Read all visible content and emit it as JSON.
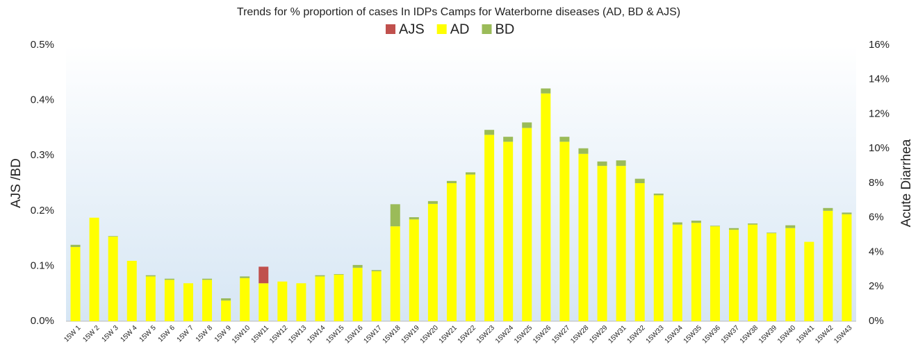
{
  "chart_data": {
    "type": "bar",
    "title": "Trends for % proportion of cases In IDPs Camps for Waterborne diseases (AD, BD & AJS)",
    "ylabel": "AJS /BD",
    "y2label": "Acute Diarrhea",
    "stacked": true,
    "legend": "top",
    "categories": [
      "15W 1",
      "15W 2",
      "15W 3",
      "15W 4",
      "15W 5",
      "15W 6",
      "15W 7",
      "15W 8",
      "15W 9",
      "15W10",
      "15W11",
      "15W12",
      "15W13",
      "15W14",
      "15W15",
      "15W16",
      "15W17",
      "15W18",
      "15W19",
      "15W20",
      "15W21",
      "15W22",
      "15W23",
      "15W24",
      "15W25",
      "15W26",
      "15W27",
      "15W28",
      "15W29",
      "15W31",
      "15W32",
      "15W33",
      "15W34",
      "15W35",
      "15W36",
      "15W37",
      "15W38",
      "15W39",
      "15W40",
      "15W41",
      "15W42",
      "15W43"
    ],
    "series": [
      {
        "name": "AJS",
        "color": "#c0504d",
        "axis": "y",
        "values": [
          0,
          0,
          0,
          0,
          0,
          0,
          0,
          0,
          0,
          0,
          0.03,
          0,
          0,
          0,
          0,
          0,
          0,
          0,
          0,
          0,
          0,
          0,
          0,
          0,
          0,
          0,
          0,
          0,
          0,
          0,
          0,
          0,
          0,
          0,
          0,
          0,
          0,
          0,
          0,
          0,
          0,
          0
        ]
      },
      {
        "name": "AD",
        "color": "#ffff00",
        "axis": "y2",
        "values": [
          4.3,
          6.0,
          4.9,
          3.5,
          2.6,
          2.4,
          2.2,
          2.4,
          1.2,
          2.5,
          2.2,
          2.3,
          2.2,
          2.6,
          2.7,
          3.1,
          2.9,
          5.5,
          5.9,
          6.8,
          8.0,
          8.5,
          10.8,
          10.4,
          11.2,
          13.2,
          10.4,
          9.7,
          9.0,
          9.0,
          8.0,
          7.3,
          5.6,
          5.7,
          5.5,
          5.3,
          5.6,
          5.1,
          5.4,
          4.6,
          6.4,
          6.2
        ]
      },
      {
        "name": "BD",
        "color": "#9bbb59",
        "axis": "y",
        "values": [
          0.004,
          0,
          0.001,
          0,
          0.002,
          0.002,
          0,
          0.002,
          0.004,
          0.003,
          0,
          0,
          0,
          0.002,
          0.001,
          0.005,
          0.002,
          0.04,
          0.004,
          0.005,
          0.004,
          0.004,
          0.009,
          0.009,
          0.01,
          0.009,
          0.009,
          0.01,
          0.008,
          0.01,
          0.008,
          0.003,
          0.004,
          0.004,
          0.001,
          0.003,
          0.002,
          0.001,
          0.005,
          0,
          0.005,
          0.003
        ]
      }
    ],
    "ylim": [
      0,
      0.5
    ],
    "yticks": [
      {
        "value": 0,
        "label": "0.0%"
      },
      {
        "value": 0.1,
        "label": "0.1%"
      },
      {
        "value": 0.2,
        "label": "0.2%"
      },
      {
        "value": 0.3,
        "label": "0.3%"
      },
      {
        "value": 0.4,
        "label": "0.4%"
      },
      {
        "value": 0.5,
        "label": "0.5%"
      }
    ],
    "y2lim": [
      0,
      16
    ],
    "y2ticks": [
      {
        "value": 0,
        "label": "0%"
      },
      {
        "value": 2,
        "label": "2%"
      },
      {
        "value": 4,
        "label": "4%"
      },
      {
        "value": 6,
        "label": "6%"
      },
      {
        "value": 8,
        "label": "8%"
      },
      {
        "value": 10,
        "label": "10%"
      },
      {
        "value": 12,
        "label": "12%"
      },
      {
        "value": 14,
        "label": "14%"
      },
      {
        "value": 16,
        "label": "16%"
      }
    ]
  }
}
